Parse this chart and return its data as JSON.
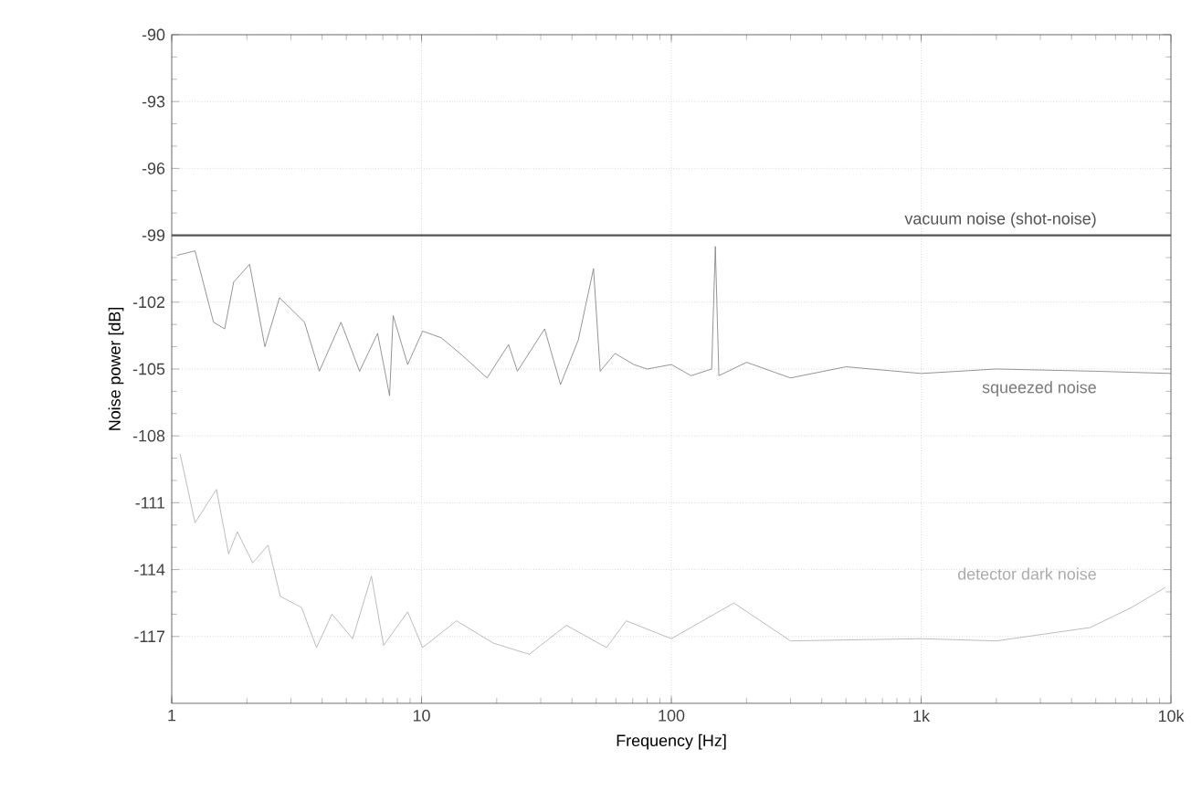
{
  "chart_data": {
    "type": "line",
    "xlabel": "Frequency [Hz]",
    "ylabel": "Noise power [dB]",
    "log": "x",
    "grid": true,
    "marker": "none",
    "line_style": "solid",
    "xlim": [
      1,
      10000
    ],
    "ylim": [
      -120,
      -90
    ],
    "xticks": [
      1,
      10,
      100,
      {
        "value": 1000,
        "label": "1k"
      },
      {
        "value": 10000,
        "label": "10k"
      }
    ],
    "yticks": [
      -90,
      -93,
      -96,
      -99,
      -102,
      -105,
      -108,
      -111,
      -114,
      -117
    ],
    "series": [
      {
        "name": "vacuum noise (shot-noise)",
        "color": "#555555",
        "x": [
          1,
          10,
          100,
          1000,
          10000
        ],
        "values": [
          -99,
          -99,
          -99,
          -99,
          -99
        ]
      },
      {
        "name": "squeezed noise",
        "color": "#7a7a7a",
        "x": [
          1.05,
          1.24,
          1.47,
          1.63,
          1.77,
          2.05,
          2.36,
          2.7,
          3.4,
          3.9,
          4.76,
          5.65,
          6.67,
          7.45,
          7.7,
          8.8,
          10.1,
          12,
          14.6,
          18.3,
          22.3,
          24.2,
          31.1,
          36,
          42.4,
          48.8,
          51.9,
          59.5,
          70.7,
          80,
          100,
          120,
          145,
          150,
          155,
          200,
          300,
          500,
          1000,
          2000,
          5000,
          10000
        ],
        "values": [
          -99.9,
          -99.7,
          -102.9,
          -103.2,
          -101.1,
          -100.3,
          -104,
          -101.8,
          -102.9,
          -105.1,
          -102.9,
          -105.1,
          -103.4,
          -106.2,
          -102.6,
          -104.8,
          -103.3,
          -103.6,
          -104.4,
          -105.4,
          -103.9,
          -105.1,
          -103.2,
          -105.7,
          -103.7,
          -100.5,
          -105.1,
          -104.3,
          -104.8,
          -105,
          -104.8,
          -105.3,
          -105,
          -99.5,
          -105.3,
          -104.7,
          -105.4,
          -104.9,
          -105.2,
          -105,
          -105.1,
          -105.2
        ]
      },
      {
        "name": "detector dark noise",
        "color": "#ababab",
        "x": [
          1.08,
          1.24,
          1.51,
          1.69,
          1.83,
          2.11,
          2.43,
          2.72,
          3.31,
          3.8,
          4.38,
          5.3,
          6.3,
          7.05,
          8.8,
          10.1,
          13.8,
          19.4,
          27,
          38,
          55,
          66,
          100,
          178,
          300,
          1000,
          2000,
          4750,
          6950,
          9500
        ],
        "values": [
          -108.8,
          -111.9,
          -110.4,
          -113.3,
          -112.3,
          -113.7,
          -112.9,
          -115.2,
          -115.7,
          -117.5,
          -116,
          -117.1,
          -114.3,
          -117.4,
          -115.9,
          -117.5,
          -116.3,
          -117.3,
          -117.8,
          -116.5,
          -117.5,
          -116.3,
          -117.1,
          -115.5,
          -117.2,
          -117.1,
          -117.2,
          -116.6,
          -115.7,
          -114.8
        ]
      }
    ]
  }
}
